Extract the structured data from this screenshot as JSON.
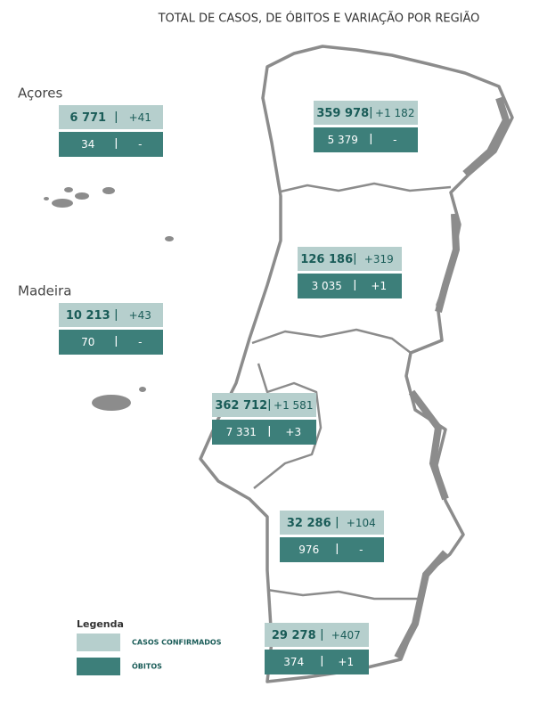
{
  "title": "TOTAL DE CASOS, DE ÓBITOS E VARIAÇÃO POR REGIÃO",
  "regions": [
    {
      "name": "Açores",
      "cases": "6 771",
      "cases_change": "+41",
      "deaths": "34",
      "deaths_change": "-"
    },
    {
      "cases": "359 978",
      "cases_change": "+1 182",
      "deaths": "5 379",
      "deaths_change": "-"
    },
    {
      "cases": "126 186",
      "cases_change": "+319",
      "deaths": "3 035",
      "deaths_change": "+1"
    },
    {
      "name": "Madeira",
      "cases": "10 213",
      "cases_change": "+43",
      "deaths": "70",
      "deaths_change": "-"
    },
    {
      "cases": "362 712",
      "cases_change": "+1 581",
      "deaths": "7 331",
      "deaths_change": "+3"
    },
    {
      "cases": "32 286",
      "cases_change": "+104",
      "deaths": "976",
      "deaths_change": "-"
    },
    {
      "cases": "29 278",
      "cases_change": "+407",
      "deaths": "374",
      "deaths_change": "+1"
    }
  ],
  "legend": {
    "title": "Legenda",
    "items": [
      {
        "label": "CASOS CONFIRMADOS"
      },
      {
        "label": "ÓBITOS"
      }
    ]
  }
}
